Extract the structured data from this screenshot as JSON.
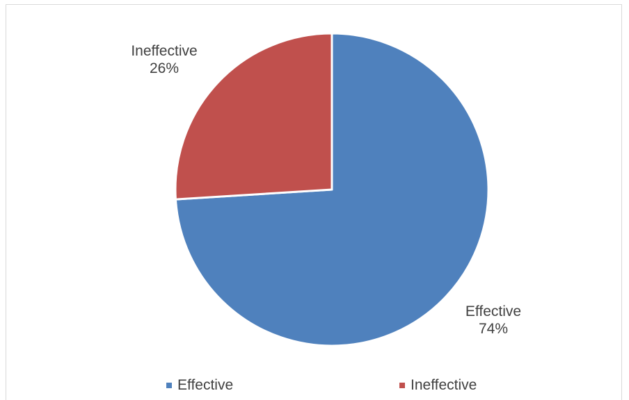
{
  "chart_data": {
    "type": "pie",
    "categories": [
      "Effective",
      "Ineffective"
    ],
    "values": [
      74,
      26
    ],
    "unit": "%",
    "colors": [
      "#4f81bd",
      "#c0504d"
    ],
    "data_labels": [
      {
        "name": "Effective",
        "value": "74%"
      },
      {
        "name": "Ineffective",
        "value": "26%"
      }
    ],
    "legend": {
      "placement": "bottom",
      "entries": [
        "Effective",
        "Ineffective"
      ]
    },
    "title": ""
  }
}
